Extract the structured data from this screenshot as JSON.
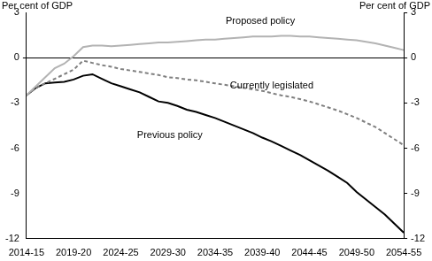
{
  "chart_data": {
    "type": "line",
    "ylabel": "Per cent of GDP",
    "y2label": "Per cent of GDP",
    "categories": [
      "2014-15",
      null,
      null,
      null,
      null,
      "2019-20",
      null,
      null,
      null,
      null,
      "2024-25",
      null,
      null,
      null,
      null,
      "2029-30",
      null,
      null,
      null,
      null,
      "2034-35",
      null,
      null,
      null,
      null,
      "2039-40",
      null,
      null,
      null,
      null,
      "2044-45",
      null,
      null,
      null,
      null,
      "2049-50",
      null,
      null,
      null,
      null,
      "2054-55"
    ],
    "series": [
      {
        "name": "Proposed policy",
        "color": "#b3b3b3",
        "line_style": "solid",
        "values": [
          -2.5,
          -1.9,
          -1.3,
          -0.7,
          -0.4,
          0.1,
          0.7,
          0.8,
          0.8,
          0.75,
          0.8,
          0.85,
          0.9,
          0.95,
          1.0,
          1.0,
          1.05,
          1.1,
          1.15,
          1.2,
          1.2,
          1.25,
          1.3,
          1.35,
          1.4,
          1.4,
          1.4,
          1.45,
          1.45,
          1.4,
          1.4,
          1.35,
          1.3,
          1.25,
          1.2,
          1.15,
          1.05,
          0.95,
          0.8,
          0.65,
          0.5
        ]
      },
      {
        "name": "Currently legislated",
        "color": "#7f7f7f",
        "line_style": "dashed",
        "values": [
          -2.5,
          -2.0,
          -1.7,
          -1.4,
          -1.1,
          -0.8,
          -0.2,
          -0.35,
          -0.5,
          -0.6,
          -0.75,
          -0.85,
          -0.95,
          -1.05,
          -1.15,
          -1.3,
          -1.35,
          -1.45,
          -1.5,
          -1.6,
          -1.7,
          -1.8,
          -1.9,
          -2.0,
          -2.1,
          -2.2,
          -2.35,
          -2.5,
          -2.6,
          -2.75,
          -2.9,
          -3.1,
          -3.3,
          -3.5,
          -3.75,
          -4.0,
          -4.3,
          -4.6,
          -5.0,
          -5.4,
          -5.8
        ]
      },
      {
        "name": "Previous policy",
        "color": "#000000",
        "line_style": "solid",
        "values": [
          -2.5,
          -2.0,
          -1.7,
          -1.65,
          -1.6,
          -1.45,
          -1.2,
          -1.1,
          -1.4,
          -1.7,
          -1.9,
          -2.1,
          -2.3,
          -2.6,
          -2.9,
          -3.0,
          -3.2,
          -3.45,
          -3.6,
          -3.8,
          -4.0,
          -4.25,
          -4.5,
          -4.75,
          -5.0,
          -5.3,
          -5.55,
          -5.85,
          -6.15,
          -6.45,
          -6.8,
          -7.15,
          -7.5,
          -7.9,
          -8.3,
          -8.9,
          -9.4,
          -9.9,
          -10.4,
          -11.0,
          -11.6
        ]
      }
    ],
    "ylim": [
      -12,
      3
    ],
    "yticks": [
      -12,
      -9,
      -6,
      -3,
      0,
      3
    ],
    "y2lim": [
      -12,
      3
    ],
    "y2ticks": [
      -12,
      -9,
      -6,
      -3,
      0,
      3
    ]
  }
}
